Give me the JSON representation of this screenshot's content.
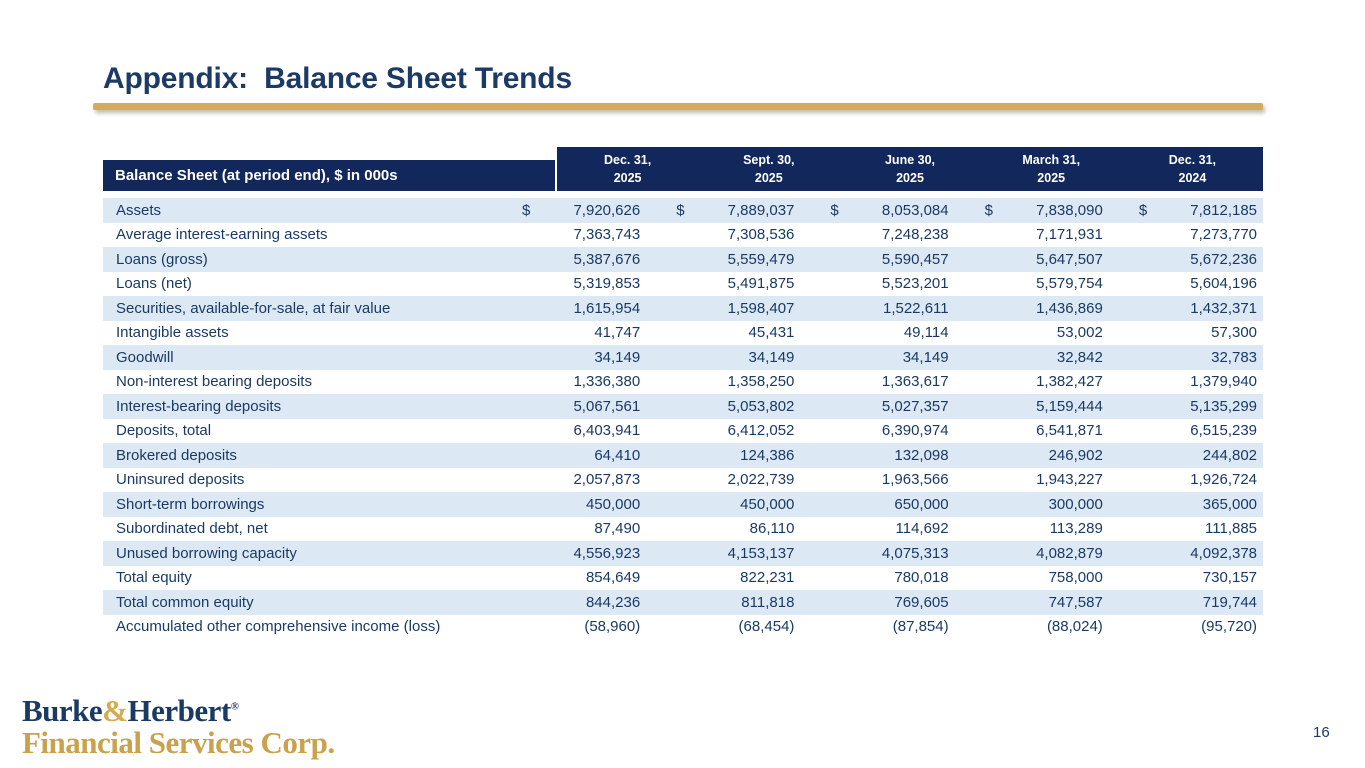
{
  "title": "Appendix:  Balance Sheet Trends",
  "page": {
    "number": "16"
  },
  "logo": {
    "burke": "Burke",
    "amp": "&",
    "herbert": "Herbert",
    "reg": "®",
    "line2": "Financial Services Corp."
  },
  "colors": {
    "navy_header": "#12275b",
    "text_navy": "#1a3a64",
    "row_stripe": "#dce8f4",
    "gold_rule": "#d3ac5b",
    "logo_gold": "#c9a24b"
  },
  "table": {
    "header_label": "Balance Sheet (at period end), $ in 000s",
    "columns": [
      {
        "line1": "Dec. 31,",
        "line2": "2025"
      },
      {
        "line1": "Sept. 30,",
        "line2": "2025"
      },
      {
        "line1": "June 30,",
        "line2": "2025"
      },
      {
        "line1": "March 31,",
        "line2": "2025"
      },
      {
        "line1": "Dec. 31,",
        "line2": "2024"
      }
    ],
    "rows": [
      {
        "label": "Assets",
        "dollar_prefix": true,
        "values": [
          "7,920,626",
          "7,889,037",
          "8,053,084",
          "7,838,090",
          "7,812,185"
        ]
      },
      {
        "label": "Average interest-earning assets",
        "dollar_prefix": false,
        "values": [
          "7,363,743",
          "7,308,536",
          "7,248,238",
          "7,171,931",
          "7,273,770"
        ]
      },
      {
        "label": "Loans (gross)",
        "dollar_prefix": false,
        "values": [
          "5,387,676",
          "5,559,479",
          "5,590,457",
          "5,647,507",
          "5,672,236"
        ]
      },
      {
        "label": "Loans (net)",
        "dollar_prefix": false,
        "values": [
          "5,319,853",
          "5,491,875",
          "5,523,201",
          "5,579,754",
          "5,604,196"
        ]
      },
      {
        "label": "Securities, available-for-sale, at fair value",
        "dollar_prefix": false,
        "values": [
          "1,615,954",
          "1,598,407",
          "1,522,611",
          "1,436,869",
          "1,432,371"
        ]
      },
      {
        "label": "Intangible assets",
        "dollar_prefix": false,
        "values": [
          "41,747",
          "45,431",
          "49,114",
          "53,002",
          "57,300"
        ]
      },
      {
        "label": "Goodwill",
        "dollar_prefix": false,
        "values": [
          "34,149",
          "34,149",
          "34,149",
          "32,842",
          "32,783"
        ]
      },
      {
        "label": "Non-interest bearing deposits",
        "dollar_prefix": false,
        "values": [
          "1,336,380",
          "1,358,250",
          "1,363,617",
          "1,382,427",
          "1,379,940"
        ]
      },
      {
        "label": "Interest-bearing deposits",
        "dollar_prefix": false,
        "values": [
          "5,067,561",
          "5,053,802",
          "5,027,357",
          "5,159,444",
          "5,135,299"
        ]
      },
      {
        "label": "Deposits, total",
        "dollar_prefix": false,
        "values": [
          "6,403,941",
          "6,412,052",
          "6,390,974",
          "6,541,871",
          "6,515,239"
        ]
      },
      {
        "label": "Brokered deposits",
        "dollar_prefix": false,
        "values": [
          "64,410",
          "124,386",
          "132,098",
          "246,902",
          "244,802"
        ]
      },
      {
        "label": "Uninsured deposits",
        "dollar_prefix": false,
        "values": [
          "2,057,873",
          "2,022,739",
          "1,963,566",
          "1,943,227",
          "1,926,724"
        ]
      },
      {
        "label": "Short-term borrowings",
        "dollar_prefix": false,
        "values": [
          "450,000",
          "450,000",
          "650,000",
          "300,000",
          "365,000"
        ]
      },
      {
        "label": "Subordinated debt, net",
        "dollar_prefix": false,
        "values": [
          "87,490",
          "86,110",
          "114,692",
          "113,289",
          "111,885"
        ]
      },
      {
        "label": "Unused borrowing capacity",
        "dollar_prefix": false,
        "values": [
          "4,556,923",
          "4,153,137",
          "4,075,313",
          "4,082,879",
          "4,092,378"
        ]
      },
      {
        "label": "Total equity",
        "dollar_prefix": false,
        "values": [
          "854,649",
          "822,231",
          "780,018",
          "758,000",
          "730,157"
        ]
      },
      {
        "label": "Total common equity",
        "dollar_prefix": false,
        "values": [
          "844,236",
          "811,818",
          "769,605",
          "747,587",
          "719,744"
        ]
      },
      {
        "label": "Accumulated other comprehensive income (loss)",
        "dollar_prefix": false,
        "values": [
          "(58,960)",
          "(68,454)",
          "(87,854)",
          "(88,024)",
          "(95,720)"
        ]
      }
    ]
  }
}
